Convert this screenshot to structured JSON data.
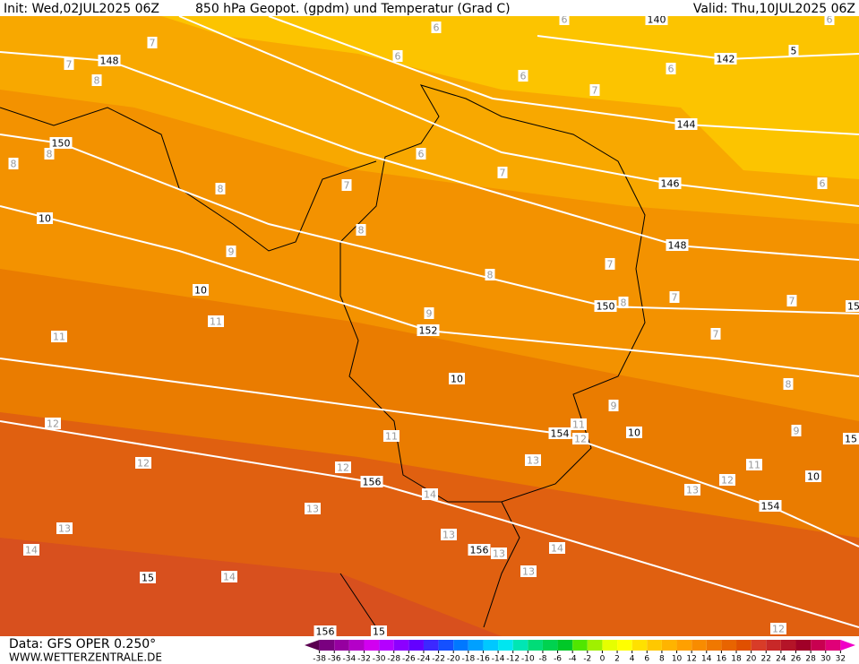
{
  "header": {
    "init": "Init: Wed,02JUL2025 06Z",
    "title": "850 hPa Geopot. (gpdm) und Temperatur (Grad C)",
    "valid": "Valid: Thu,10JUL2025 06Z"
  },
  "geopotential_labels": [
    "148",
    "150",
    "140",
    "142",
    "5",
    "144",
    "146",
    "148",
    "150",
    "152",
    "154",
    "156",
    "154",
    "156",
    "156",
    "15",
    "15",
    "10",
    "10",
    "10",
    "10",
    "10",
    "15",
    "15"
  ],
  "temperature_labels": [
    "7",
    "7",
    "8",
    "6",
    "6",
    "6",
    "6",
    "7",
    "6",
    "7",
    "7",
    "8",
    "6",
    "8",
    "9",
    "7",
    "8",
    "7",
    "7",
    "8",
    "9",
    "11",
    "11",
    "7",
    "8",
    "9",
    "11",
    "12",
    "9",
    "12",
    "11",
    "12",
    "12",
    "13",
    "11",
    "12",
    "13",
    "14",
    "13",
    "13",
    "13",
    "14",
    "14",
    "13",
    "13",
    "14",
    "12",
    "8",
    "8",
    "6",
    "6"
  ],
  "footer": {
    "data": "Data: GFS OPER 0.250°",
    "site": "WWW.WETTERZENTRALE.DE"
  },
  "color_scale": {
    "ticks": [
      -38,
      -36,
      -34,
      -32,
      -30,
      -28,
      -26,
      -24,
      -22,
      -20,
      -18,
      -16,
      -14,
      -12,
      -10,
      -8,
      -6,
      -4,
      -2,
      0,
      2,
      4,
      6,
      8,
      10,
      12,
      14,
      16,
      18,
      20,
      22,
      24,
      26,
      28,
      30,
      32
    ],
    "colors": [
      "#5a0050",
      "#7a0080",
      "#9600a0",
      "#b400c8",
      "#d200f0",
      "#b400ff",
      "#8c00ff",
      "#6400ff",
      "#3c28ff",
      "#1450ff",
      "#0078ff",
      "#00a0ff",
      "#00c8ff",
      "#00e6f0",
      "#00e6b4",
      "#00dc78",
      "#00d250",
      "#00c828",
      "#50e600",
      "#a0f000",
      "#e6ff00",
      "#ffff00",
      "#ffe100",
      "#ffc800",
      "#ffb400",
      "#ffa000",
      "#f88c00",
      "#f07800",
      "#e86400",
      "#e05000",
      "#d83c28",
      "#c82828",
      "#b41428",
      "#a00028",
      "#c80050",
      "#e00078",
      "#f000c8"
    ]
  }
}
